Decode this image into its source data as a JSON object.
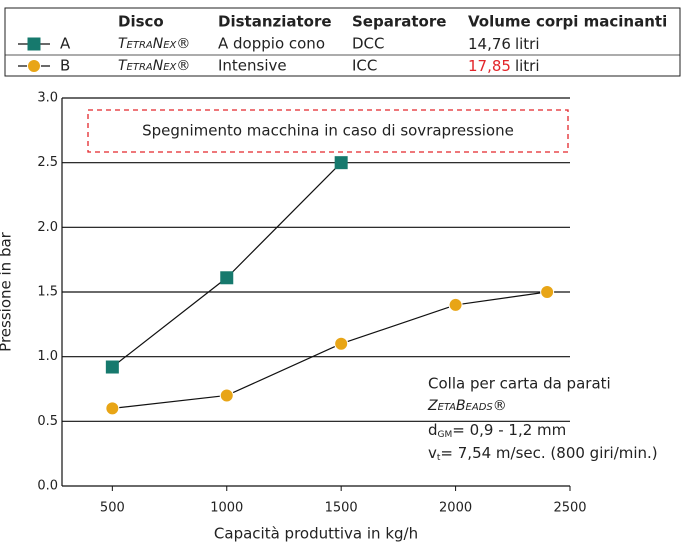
{
  "chart_data": {
    "type": "line",
    "legend": {
      "headers": [
        "Disco",
        "Distanziatore",
        "Separatore",
        "Volume corpi macinanti"
      ],
      "rows": [
        {
          "disco": "TetraNex®",
          "distanziatore": "A doppio cono",
          "separatore": "DCC",
          "volume": "14,76",
          "unit": "litri"
        },
        {
          "disco": "TetraNex®",
          "distanziatore": "Intensive",
          "separatore": "ICC",
          "volume": "17,85",
          "unit": "litri"
        }
      ]
    },
    "series": [
      {
        "name": "A",
        "color": "#16796d",
        "marker": "square",
        "x": [
          500,
          1000,
          1500
        ],
        "values": [
          0.92,
          1.61,
          2.5
        ]
      },
      {
        "name": "B",
        "color": "#e8a516",
        "marker": "circle",
        "x": [
          500,
          1000,
          1500,
          2000,
          2400
        ],
        "values": [
          0.6,
          0.7,
          1.1,
          1.4,
          1.5
        ]
      }
    ],
    "highlight_color": "#e3262b",
    "xlabel": "Capacità produttiva in kg/h",
    "ylabel": "Pressione in bar",
    "xlim": [
      280,
      2500
    ],
    "xticks": [
      500,
      1000,
      1500,
      2000,
      2500
    ],
    "ylim": [
      0,
      3
    ],
    "yticks": [
      {
        "value": 0,
        "label": "0.0"
      },
      0.5,
      {
        "value": 1,
        "label": "1.0"
      },
      1.5,
      {
        "value": 2,
        "label": "2.0"
      },
      2.5,
      {
        "value": 3,
        "label": "3.0"
      }
    ],
    "grid": true,
    "warning": "Spegnimento macchina in caso di sovrapressione",
    "note": {
      "line1": "Colla per carta da parati",
      "line2": "ZetaBeads®",
      "d_main": "d",
      "d_sub": "GM",
      "d_rest": "= 0,9 - 1,2 mm",
      "v_main": "v",
      "v_sub": "t",
      "v_rest": "= 7,54 m/sec. (800 giri/min.)"
    }
  }
}
